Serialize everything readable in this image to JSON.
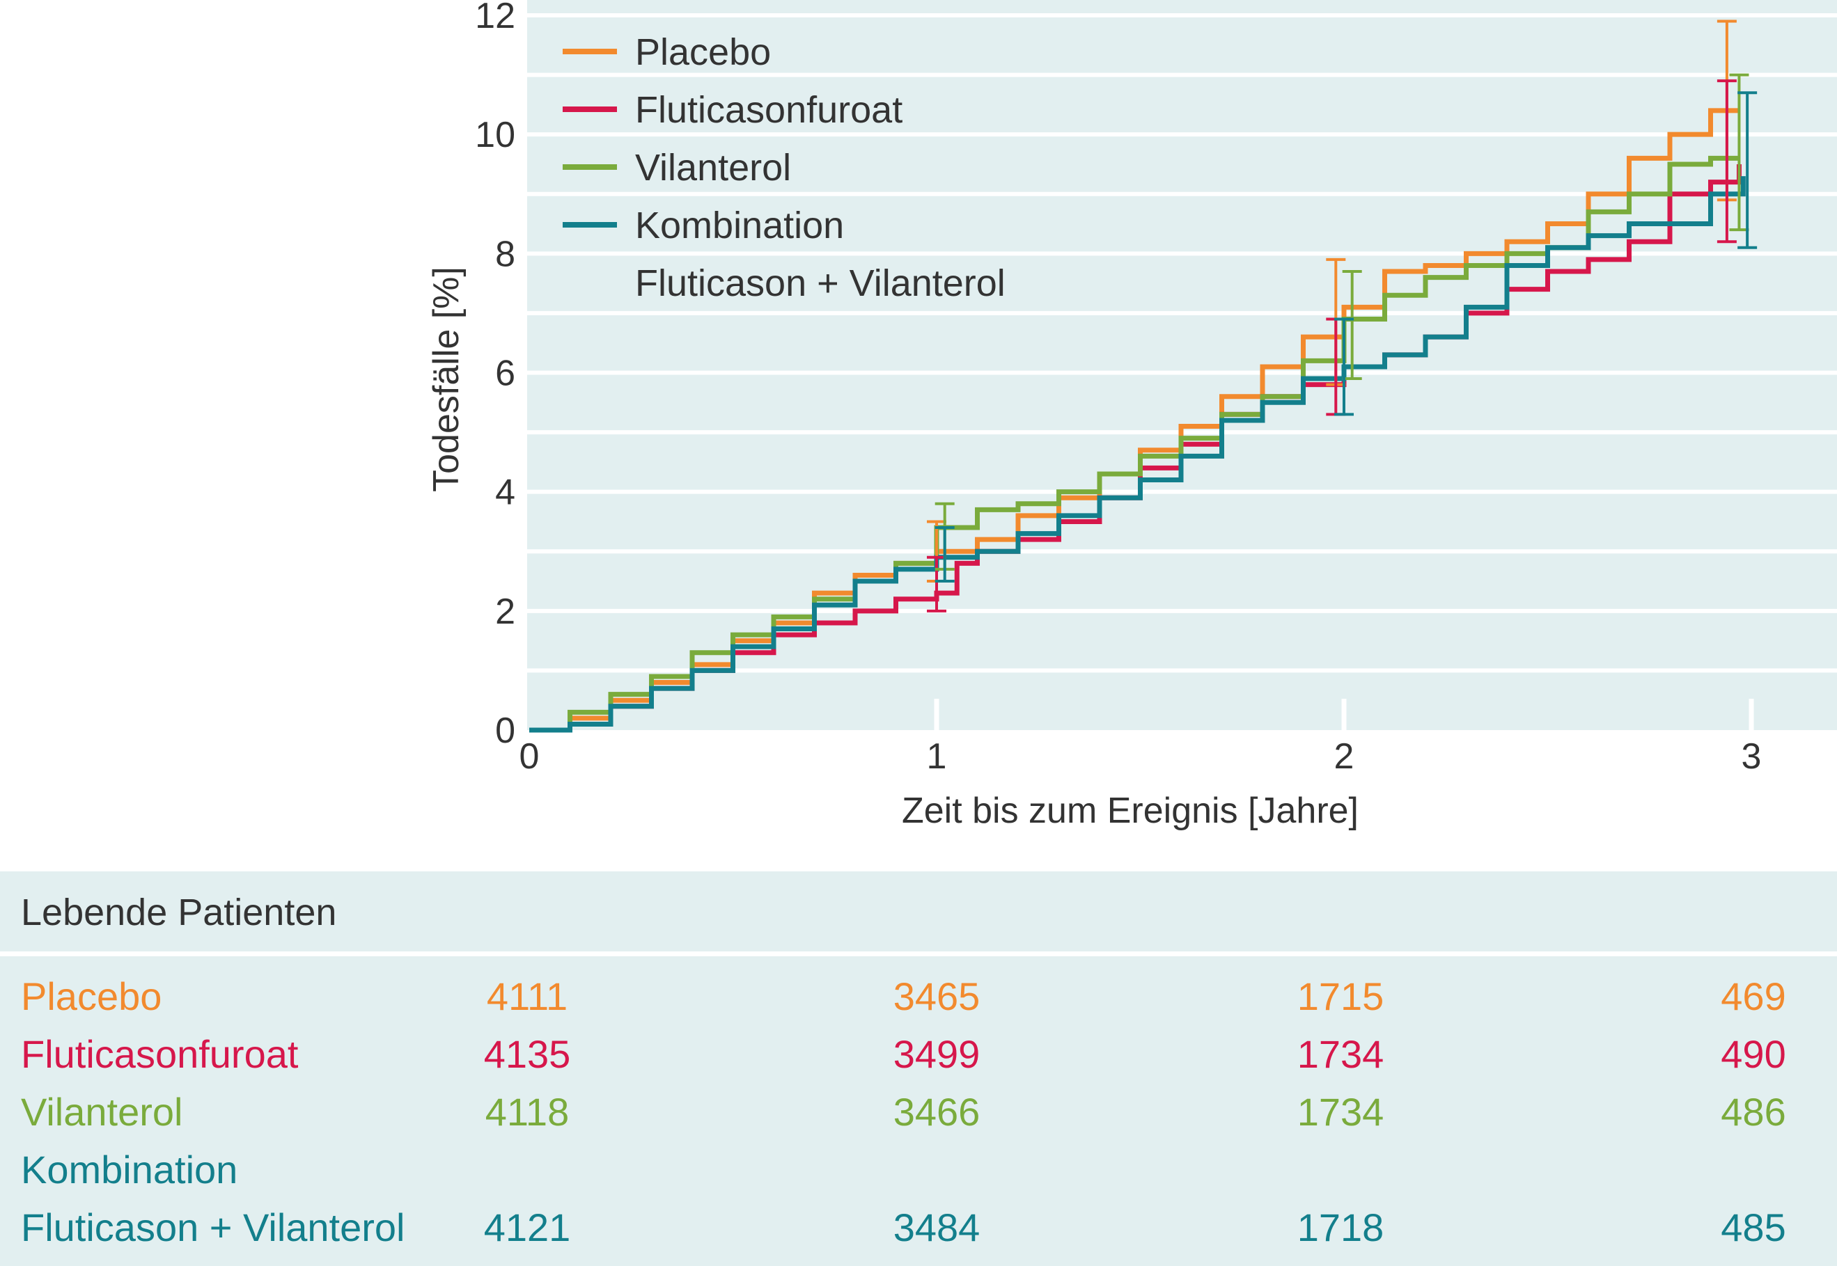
{
  "chart_data": {
    "type": "line",
    "step": true,
    "xlabel": "Zeit bis zum Ereignis [Jahre]",
    "ylabel": "Todesfälle [%]",
    "xlim": [
      0,
      3.1
    ],
    "ylim": [
      0,
      12
    ],
    "xticks": [
      "0",
      "1",
      "2",
      "3"
    ],
    "yticks": [
      "0",
      "2",
      "4",
      "6",
      "8",
      "10",
      "12"
    ],
    "grid": "horizontal",
    "legend_position": "top-left",
    "legend": [
      {
        "label": "Placebo",
        "series": 0
      },
      {
        "label": "Fluticasonfuroat",
        "series": 1
      },
      {
        "label": "Vilanterol",
        "series": 2
      },
      {
        "label": "Kombination",
        "series": 3
      },
      {
        "label": "Fluticason + Vilanterol",
        "series": null
      }
    ],
    "series": [
      {
        "name": "Placebo",
        "color": "#f28a2e",
        "points": [
          [
            0,
            0
          ],
          [
            0.1,
            0.2
          ],
          [
            0.2,
            0.5
          ],
          [
            0.3,
            0.8
          ],
          [
            0.4,
            1.1
          ],
          [
            0.5,
            1.5
          ],
          [
            0.6,
            1.8
          ],
          [
            0.7,
            2.3
          ],
          [
            0.8,
            2.6
          ],
          [
            0.9,
            2.8
          ],
          [
            1.0,
            3.0
          ],
          [
            1.1,
            3.2
          ],
          [
            1.2,
            3.6
          ],
          [
            1.3,
            3.9
          ],
          [
            1.4,
            4.3
          ],
          [
            1.5,
            4.7
          ],
          [
            1.6,
            5.1
          ],
          [
            1.7,
            5.6
          ],
          [
            1.8,
            6.1
          ],
          [
            1.9,
            6.6
          ],
          [
            2.0,
            7.1
          ],
          [
            2.1,
            7.7
          ],
          [
            2.2,
            7.8
          ],
          [
            2.3,
            8.0
          ],
          [
            2.4,
            8.2
          ],
          [
            2.5,
            8.5
          ],
          [
            2.6,
            9.0
          ],
          [
            2.7,
            9.6
          ],
          [
            2.8,
            10.0
          ],
          [
            2.9,
            10.4
          ],
          [
            2.97,
            10.4
          ]
        ],
        "error_bars": [
          {
            "x": 1.0,
            "y": 3.0,
            "low": 2.5,
            "high": 3.5
          },
          {
            "x": 1.98,
            "y": 6.8,
            "low": 5.8,
            "high": 7.9
          },
          {
            "x": 2.94,
            "y": 10.4,
            "low": 8.9,
            "high": 11.9
          }
        ]
      },
      {
        "name": "Fluticasonfuroat",
        "color": "#d6174b",
        "points": [
          [
            0,
            0
          ],
          [
            0.1,
            0.1
          ],
          [
            0.2,
            0.4
          ],
          [
            0.3,
            0.7
          ],
          [
            0.4,
            1.0
          ],
          [
            0.5,
            1.3
          ],
          [
            0.6,
            1.6
          ],
          [
            0.7,
            1.8
          ],
          [
            0.8,
            2.0
          ],
          [
            0.9,
            2.2
          ],
          [
            1.0,
            2.3
          ],
          [
            1.05,
            2.8
          ],
          [
            1.1,
            3.0
          ],
          [
            1.2,
            3.2
          ],
          [
            1.3,
            3.5
          ],
          [
            1.4,
            3.9
          ],
          [
            1.5,
            4.4
          ],
          [
            1.6,
            4.8
          ],
          [
            1.7,
            5.3
          ],
          [
            1.8,
            5.6
          ],
          [
            1.9,
            5.8
          ],
          [
            2.0,
            6.1
          ],
          [
            2.1,
            6.3
          ],
          [
            2.2,
            6.6
          ],
          [
            2.3,
            7.0
          ],
          [
            2.4,
            7.4
          ],
          [
            2.5,
            7.7
          ],
          [
            2.6,
            7.9
          ],
          [
            2.7,
            8.2
          ],
          [
            2.8,
            9.0
          ],
          [
            2.9,
            9.2
          ],
          [
            2.97,
            9.5
          ]
        ],
        "error_bars": [
          {
            "x": 1.0,
            "y": 2.3,
            "low": 2.0,
            "high": 2.9
          },
          {
            "x": 1.98,
            "y": 6.1,
            "low": 5.3,
            "high": 6.9
          },
          {
            "x": 2.94,
            "y": 9.2,
            "low": 8.2,
            "high": 10.9
          }
        ]
      },
      {
        "name": "Vilanterol",
        "color": "#7aab3c",
        "points": [
          [
            0,
            0
          ],
          [
            0.1,
            0.3
          ],
          [
            0.2,
            0.6
          ],
          [
            0.3,
            0.9
          ],
          [
            0.4,
            1.3
          ],
          [
            0.5,
            1.6
          ],
          [
            0.6,
            1.9
          ],
          [
            0.7,
            2.2
          ],
          [
            0.8,
            2.5
          ],
          [
            0.9,
            2.8
          ],
          [
            1.0,
            3.4
          ],
          [
            1.1,
            3.7
          ],
          [
            1.2,
            3.8
          ],
          [
            1.3,
            4.0
          ],
          [
            1.4,
            4.3
          ],
          [
            1.5,
            4.6
          ],
          [
            1.6,
            4.9
          ],
          [
            1.7,
            5.3
          ],
          [
            1.8,
            5.6
          ],
          [
            1.9,
            6.2
          ],
          [
            2.0,
            6.9
          ],
          [
            2.1,
            7.3
          ],
          [
            2.2,
            7.6
          ],
          [
            2.3,
            7.8
          ],
          [
            2.4,
            8.0
          ],
          [
            2.5,
            8.1
          ],
          [
            2.6,
            8.7
          ],
          [
            2.7,
            9.0
          ],
          [
            2.8,
            9.5
          ],
          [
            2.9,
            9.6
          ],
          [
            2.97,
            9.6
          ]
        ],
        "error_bars": [
          {
            "x": 1.02,
            "y": 3.4,
            "low": 2.7,
            "high": 3.8
          },
          {
            "x": 2.02,
            "y": 6.9,
            "low": 5.9,
            "high": 7.7
          },
          {
            "x": 2.97,
            "y": 9.6,
            "low": 8.4,
            "high": 11.0
          }
        ]
      },
      {
        "name": "Kombination",
        "color": "#137f8c",
        "points": [
          [
            0,
            0
          ],
          [
            0.1,
            0.1
          ],
          [
            0.2,
            0.4
          ],
          [
            0.3,
            0.7
          ],
          [
            0.4,
            1.0
          ],
          [
            0.5,
            1.4
          ],
          [
            0.6,
            1.7
          ],
          [
            0.7,
            2.1
          ],
          [
            0.8,
            2.5
          ],
          [
            0.9,
            2.7
          ],
          [
            1.0,
            2.9
          ],
          [
            1.1,
            3.0
          ],
          [
            1.2,
            3.3
          ],
          [
            1.3,
            3.6
          ],
          [
            1.4,
            3.9
          ],
          [
            1.5,
            4.2
          ],
          [
            1.6,
            4.6
          ],
          [
            1.7,
            5.2
          ],
          [
            1.8,
            5.5
          ],
          [
            1.9,
            5.9
          ],
          [
            2.0,
            6.1
          ],
          [
            2.1,
            6.3
          ],
          [
            2.2,
            6.6
          ],
          [
            2.3,
            7.1
          ],
          [
            2.4,
            7.8
          ],
          [
            2.5,
            8.1
          ],
          [
            2.6,
            8.3
          ],
          [
            2.7,
            8.5
          ],
          [
            2.8,
            8.5
          ],
          [
            2.9,
            9.0
          ],
          [
            2.98,
            9.3
          ]
        ],
        "error_bars": [
          {
            "x": 1.02,
            "y": 2.9,
            "low": 2.5,
            "high": 3.4
          },
          {
            "x": 2.0,
            "y": 6.1,
            "low": 5.3,
            "high": 6.9
          },
          {
            "x": 2.99,
            "y": 9.3,
            "low": 8.1,
            "high": 10.7
          }
        ]
      }
    ]
  },
  "table": {
    "title": "Lebende Patienten",
    "rows": [
      {
        "name": "Placebo",
        "color": "#f28a2e",
        "values": [
          "4111",
          "3465",
          "1715",
          "469"
        ]
      },
      {
        "name": "Fluticasonfuroat",
        "color": "#d6174b",
        "values": [
          "4135",
          "3499",
          "1734",
          "490"
        ]
      },
      {
        "name": "Vilanterol",
        "color": "#7aab3c",
        "values": [
          "4118",
          "3466",
          "1734",
          "486"
        ]
      },
      {
        "name": "Kombination",
        "color": "#137f8c",
        "values": []
      },
      {
        "name": "Fluticason + Vilanterol",
        "color": "#137f8c",
        "values": [
          "4121",
          "3484",
          "1718",
          "485"
        ]
      }
    ]
  },
  "colors": {
    "plot_background": "#e2eff0",
    "grid": "#ffffff",
    "text": "#333333"
  }
}
